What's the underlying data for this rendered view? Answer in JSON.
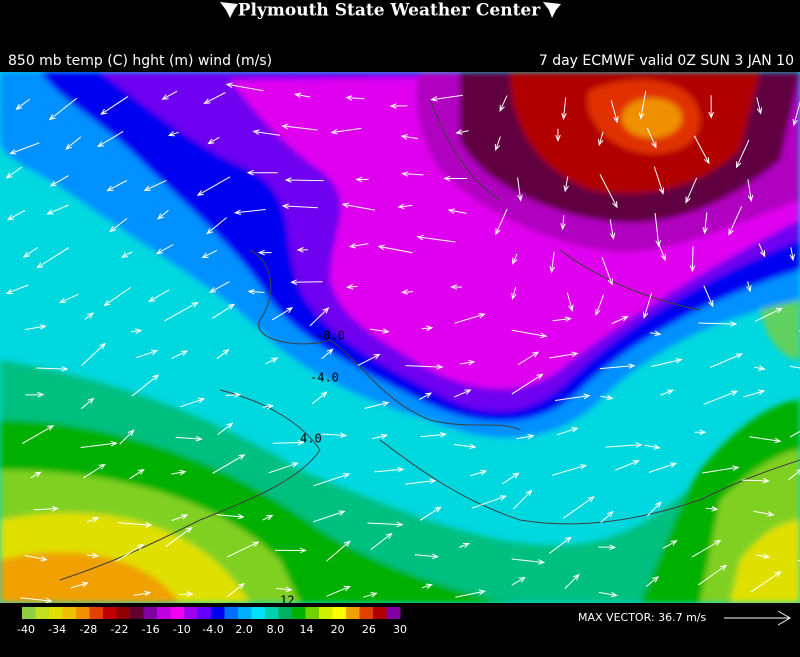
{
  "header": {
    "title": "Plymouth State Weather Center"
  },
  "map": {
    "title_left": "850 mb temp (C) hght (m) wind (m/s)",
    "title_right": "7 day ECMWF valid 0Z SUN 3 JAN 10",
    "contour_labels": [
      "-8.0",
      "-4.0",
      "4.0",
      "12"
    ]
  },
  "colorbar": {
    "labels": [
      "-40",
      "-34",
      "-28",
      "-22",
      "-16",
      "-10",
      "-4.0",
      "2.0",
      "8.0",
      "14",
      "20",
      "26",
      "30"
    ]
  },
  "max_vector": "MAX VECTOR:  36.7 m/s"
}
